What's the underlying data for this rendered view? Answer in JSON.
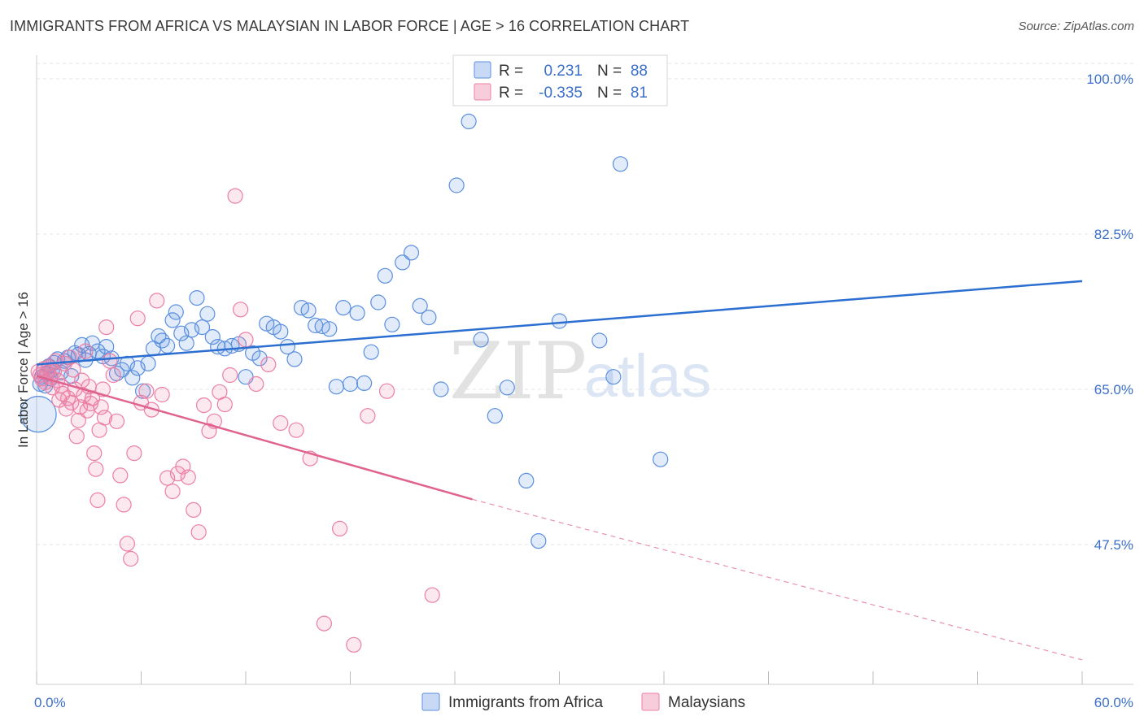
{
  "header": {
    "title": "IMMIGRANTS FROM AFRICA VS MALAYSIAN IN LABOR FORCE | AGE > 16 CORRELATION CHART",
    "source": "Source: ZipAtlas.com"
  },
  "watermark": {
    "zip": "ZIP",
    "atlas": "atlas"
  },
  "legend": {
    "r_label": "R =",
    "n_label": "N =",
    "rows": [
      {
        "r": "0.231",
        "n": "88",
        "color": "#5b8fe0"
      },
      {
        "r": "-0.335",
        "n": "81",
        "color": "#ec7fa5"
      }
    ]
  },
  "chart_data": {
    "type": "scatter",
    "title": "IMMIGRANTS FROM AFRICA VS MALAYSIAN IN LABOR FORCE | AGE > 16 CORRELATION CHART",
    "ylabel": "In Labor Force | Age > 16",
    "xlim": [
      0,
      60
    ],
    "ylim": [
      33,
      101.5
    ],
    "x_tick_labels": [
      "0.0%",
      "60.0%"
    ],
    "y_ticks": [
      {
        "value": 100.0,
        "label": "100.0%"
      },
      {
        "value": 82.5,
        "label": "82.5%"
      },
      {
        "value": 65.0,
        "label": "65.0%"
      },
      {
        "value": 47.5,
        "label": "47.5%"
      }
    ],
    "grid": true,
    "legend_position": "top-center",
    "series": [
      {
        "name": "Immigrants from Africa",
        "color": "#5b8fe0",
        "trend": {
          "x0": 0,
          "y0": 67.8,
          "x1": 60,
          "y1": 77.2
        },
        "points": [
          [
            0.1,
            62.2
          ],
          [
            0.2,
            65.6
          ],
          [
            0.3,
            66.4
          ],
          [
            0.4,
            67.1
          ],
          [
            0.5,
            65.4
          ],
          [
            0.6,
            66.8
          ],
          [
            0.7,
            67.6
          ],
          [
            0.8,
            66.2
          ],
          [
            0.9,
            67.2
          ],
          [
            1.0,
            68.0
          ],
          [
            1.2,
            68.4
          ],
          [
            1.4,
            66.9
          ],
          [
            1.6,
            68.2
          ],
          [
            1.8,
            68.6
          ],
          [
            2.0,
            66.5
          ],
          [
            2.2,
            69.1
          ],
          [
            2.4,
            68.9
          ],
          [
            2.6,
            70.0
          ],
          [
            2.8,
            68.3
          ],
          [
            3.0,
            69.0
          ],
          [
            3.2,
            70.2
          ],
          [
            3.5,
            69.3
          ],
          [
            3.8,
            68.7
          ],
          [
            4.0,
            69.8
          ],
          [
            4.3,
            68.5
          ],
          [
            4.6,
            66.8
          ],
          [
            4.9,
            67.2
          ],
          [
            5.2,
            67.9
          ],
          [
            5.5,
            66.3
          ],
          [
            5.8,
            67.4
          ],
          [
            6.1,
            64.8
          ],
          [
            6.4,
            67.9
          ],
          [
            6.7,
            69.6
          ],
          [
            7.0,
            71.0
          ],
          [
            7.2,
            70.5
          ],
          [
            7.5,
            69.9
          ],
          [
            7.8,
            72.8
          ],
          [
            8.0,
            73.7
          ],
          [
            8.3,
            71.3
          ],
          [
            8.6,
            70.2
          ],
          [
            8.9,
            71.7
          ],
          [
            9.2,
            75.3
          ],
          [
            9.5,
            72.0
          ],
          [
            9.8,
            73.5
          ],
          [
            10.1,
            70.9
          ],
          [
            10.4,
            69.8
          ],
          [
            10.8,
            69.6
          ],
          [
            11.2,
            69.9
          ],
          [
            11.6,
            70.1
          ],
          [
            12.0,
            66.4
          ],
          [
            12.4,
            69.1
          ],
          [
            12.8,
            68.5
          ],
          [
            13.2,
            72.4
          ],
          [
            13.6,
            72.0
          ],
          [
            14.0,
            71.5
          ],
          [
            14.4,
            69.8
          ],
          [
            14.8,
            68.4
          ],
          [
            15.2,
            74.2
          ],
          [
            15.6,
            73.9
          ],
          [
            16.0,
            72.2
          ],
          [
            16.4,
            72.1
          ],
          [
            16.8,
            71.8
          ],
          [
            17.2,
            65.3
          ],
          [
            17.6,
            74.2
          ],
          [
            18.0,
            65.6
          ],
          [
            18.4,
            73.6
          ],
          [
            18.8,
            65.7
          ],
          [
            19.2,
            69.2
          ],
          [
            19.6,
            74.8
          ],
          [
            20.0,
            77.8
          ],
          [
            20.4,
            72.3
          ],
          [
            21.0,
            79.3
          ],
          [
            21.5,
            80.4
          ],
          [
            22.0,
            74.4
          ],
          [
            22.5,
            73.1
          ],
          [
            23.2,
            65.0
          ],
          [
            24.1,
            88.0
          ],
          [
            24.8,
            95.2
          ],
          [
            25.5,
            70.6
          ],
          [
            26.3,
            62.0
          ],
          [
            27.0,
            65.2
          ],
          [
            28.1,
            54.7
          ],
          [
            28.8,
            47.9
          ],
          [
            30.0,
            72.7
          ],
          [
            32.3,
            70.5
          ],
          [
            33.1,
            66.4
          ],
          [
            33.5,
            90.4
          ],
          [
            35.8,
            57.1
          ]
        ]
      },
      {
        "name": "Malaysians",
        "color": "#ec7fa5",
        "trend": {
          "x0": 0,
          "y0": 66.5,
          "x1": 25,
          "y1": 52.6,
          "dash_to_x": 60,
          "dash_to_y": 34.5
        },
        "points": [
          [
            0.1,
            67.0
          ],
          [
            0.2,
            66.6
          ],
          [
            0.3,
            66.2
          ],
          [
            0.4,
            67.3
          ],
          [
            0.5,
            65.8
          ],
          [
            0.6,
            66.9
          ],
          [
            0.7,
            67.5
          ],
          [
            0.8,
            66.4
          ],
          [
            0.9,
            65.2
          ],
          [
            1.0,
            67.0
          ],
          [
            1.1,
            68.2
          ],
          [
            1.2,
            66.0
          ],
          [
            1.3,
            63.8
          ],
          [
            1.4,
            65.4
          ],
          [
            1.5,
            64.5
          ],
          [
            1.6,
            67.9
          ],
          [
            1.7,
            62.8
          ],
          [
            1.8,
            64.0
          ],
          [
            1.9,
            68.6
          ],
          [
            2.0,
            63.5
          ],
          [
            2.1,
            67.2
          ],
          [
            2.2,
            65.0
          ],
          [
            2.3,
            59.7
          ],
          [
            2.4,
            61.5
          ],
          [
            2.5,
            63.0
          ],
          [
            2.6,
            66.0
          ],
          [
            2.7,
            64.3
          ],
          [
            2.8,
            69.3
          ],
          [
            2.9,
            62.6
          ],
          [
            3.0,
            65.3
          ],
          [
            3.1,
            63.4
          ],
          [
            3.2,
            64.0
          ],
          [
            3.3,
            57.8
          ],
          [
            3.4,
            56.0
          ],
          [
            3.5,
            52.5
          ],
          [
            3.6,
            60.4
          ],
          [
            3.7,
            63.0
          ],
          [
            3.8,
            65.0
          ],
          [
            3.9,
            61.8
          ],
          [
            4.0,
            72.0
          ],
          [
            4.2,
            68.2
          ],
          [
            4.4,
            66.6
          ],
          [
            4.6,
            61.4
          ],
          [
            4.8,
            55.3
          ],
          [
            5.0,
            52.0
          ],
          [
            5.2,
            47.6
          ],
          [
            5.4,
            45.9
          ],
          [
            5.6,
            57.8
          ],
          [
            5.8,
            73.0
          ],
          [
            6.0,
            63.5
          ],
          [
            6.3,
            64.8
          ],
          [
            6.6,
            62.7
          ],
          [
            6.9,
            75.0
          ],
          [
            7.2,
            64.4
          ],
          [
            7.5,
            55.0
          ],
          [
            7.8,
            53.5
          ],
          [
            8.1,
            55.5
          ],
          [
            8.4,
            56.3
          ],
          [
            8.7,
            55.1
          ],
          [
            9.0,
            51.4
          ],
          [
            9.3,
            48.9
          ],
          [
            9.6,
            63.2
          ],
          [
            9.9,
            60.3
          ],
          [
            10.2,
            61.4
          ],
          [
            10.5,
            64.7
          ],
          [
            10.8,
            63.3
          ],
          [
            11.1,
            66.6
          ],
          [
            11.4,
            86.8
          ],
          [
            11.7,
            74.0
          ],
          [
            12.0,
            70.6
          ],
          [
            12.6,
            65.6
          ],
          [
            13.3,
            67.8
          ],
          [
            14.0,
            61.2
          ],
          [
            14.9,
            60.4
          ],
          [
            15.7,
            57.2
          ],
          [
            16.5,
            38.6
          ],
          [
            17.4,
            49.3
          ],
          [
            18.2,
            36.2
          ],
          [
            19.0,
            62.0
          ],
          [
            20.1,
            64.8
          ],
          [
            22.7,
            41.8
          ]
        ]
      }
    ]
  },
  "bottom_legend": [
    {
      "label": "Immigrants from Africa",
      "color": "#5b8fe0"
    },
    {
      "label": "Malaysians",
      "color": "#ec7fa5"
    }
  ]
}
